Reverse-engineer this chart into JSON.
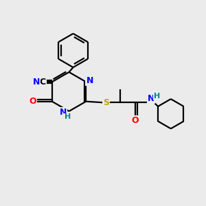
{
  "bg_color": "#ebebeb",
  "bond_color": "#000000",
  "bond_width": 1.6,
  "colors": {
    "N": "#0000ff",
    "O": "#ff0000",
    "S": "#bbaa00",
    "H": "#008888",
    "C": "#000000"
  },
  "figsize": [
    3.0,
    3.0
  ],
  "dpi": 100,
  "xlim": [
    0,
    10
  ],
  "ylim": [
    0,
    10
  ]
}
